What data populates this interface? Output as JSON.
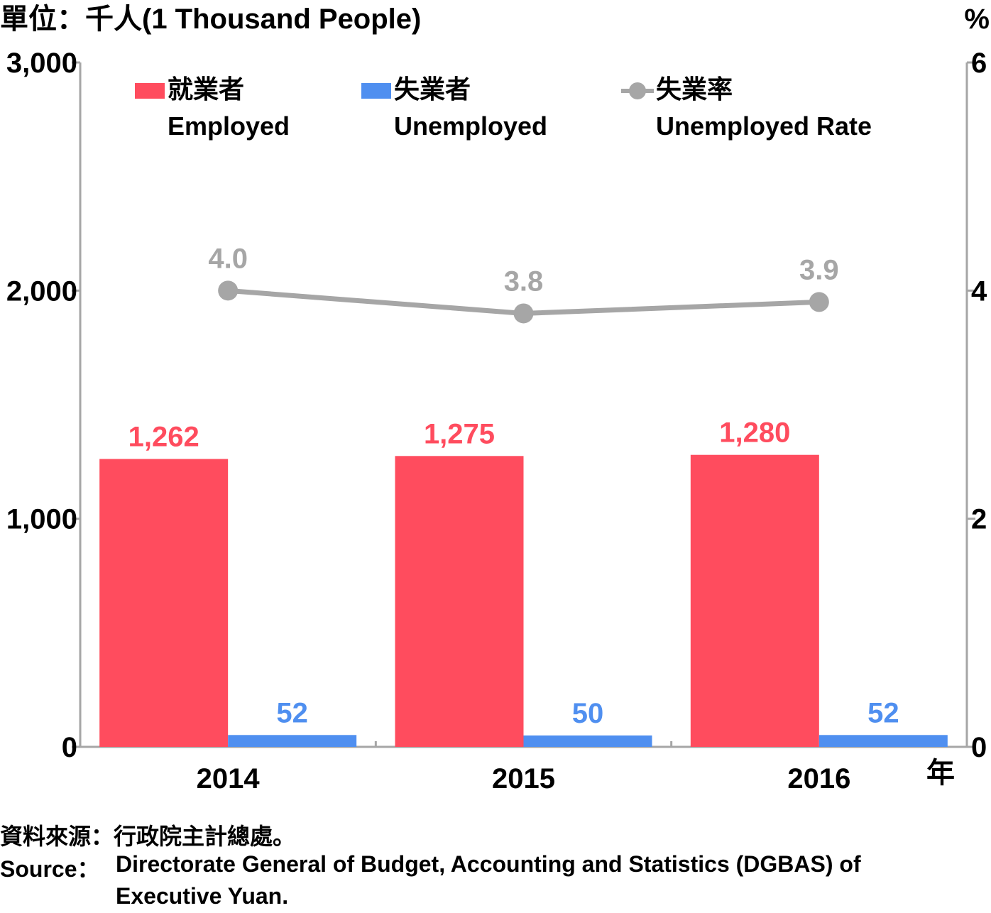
{
  "header": {
    "unit_label": "單位：千人(1 Thousand People)",
    "right_unit_label": "%"
  },
  "x_axis_unit": "年",
  "legend": [
    {
      "zh": "就業者",
      "en": "Employed",
      "color": "#ff4c5e",
      "marker": "rect"
    },
    {
      "zh": "失業者",
      "en": "Unemployed",
      "color": "#4f8ff0",
      "marker": "rect"
    },
    {
      "zh": "失業率",
      "en": "Unemployed Rate",
      "color": "#a6a6a6",
      "marker": "line-circle"
    }
  ],
  "chart_data": {
    "type": "bar",
    "categories": [
      "2014",
      "2015",
      "2016"
    ],
    "series": [
      {
        "name": "就業者 Employed",
        "values": [
          1262,
          1275,
          1280
        ],
        "labels": [
          "1,262",
          "1,275",
          "1,280"
        ],
        "color": "#ff4c5e",
        "axis": "left"
      },
      {
        "name": "失業者 Unemployed",
        "values": [
          52,
          50,
          52
        ],
        "labels": [
          "52",
          "50",
          "52"
        ],
        "color": "#4f8ff0",
        "axis": "left"
      },
      {
        "name": "失業率 Unemployed Rate",
        "type": "line",
        "values": [
          4.0,
          3.8,
          3.9
        ],
        "labels": [
          "4.0",
          "3.8",
          "3.9"
        ],
        "color": "#a6a6a6",
        "axis": "right"
      }
    ],
    "left_axis": {
      "range": [
        0,
        3000
      ],
      "ticks": [
        0,
        1000,
        2000,
        3000
      ],
      "tick_labels": [
        "0",
        "1,000",
        "2,000",
        "3,000"
      ]
    },
    "right_axis": {
      "range": [
        0,
        6
      ],
      "ticks": [
        0,
        2,
        4,
        6
      ],
      "tick_labels": [
        "0",
        "2",
        "4",
        "6"
      ]
    },
    "legend_position": "top",
    "grid": false
  },
  "footer": {
    "source_zh": "資料來源：行政院主計總處。",
    "source_en_label": "Source：",
    "source_en_text_line1": "Directorate General of Budget, Accounting and Statistics (DGBAS) of",
    "source_en_text_line2": "Executive Yuan."
  }
}
